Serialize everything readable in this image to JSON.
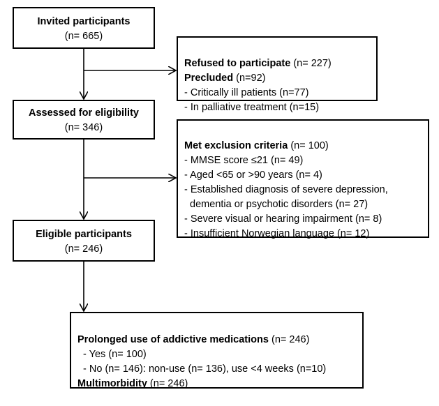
{
  "nodes": [
    {
      "title": "Invited participants",
      "count": "(n= 665)"
    },
    {
      "lines": [
        {
          "label": "Refused to participate",
          "count": "(n= 227)"
        },
        {
          "label": "Precluded",
          "count": "(n=92)"
        },
        {
          "text": "- Critically ill patients (n=77)"
        },
        {
          "text": "- In palliative treatment (n=15)"
        }
      ]
    },
    {
      "title": "Assessed for eligibility",
      "count": "(n= 346)"
    },
    {
      "lines": [
        {
          "label": "Met exclusion criteria",
          "count": "(n= 100)"
        },
        {
          "text": "- MMSE score ≤21 (n= 49)"
        },
        {
          "text": "- Aged <65 or >90 years (n= 4)"
        },
        {
          "text": "- Established diagnosis of severe depression,"
        },
        {
          "text": "  dementia or psychotic disorders (n= 27)"
        },
        {
          "text": "- Severe visual or hearing impairment (n= 8)"
        },
        {
          "text": "- Insufficient Norwegian language (n= 12)"
        }
      ]
    },
    {
      "title": "Eligible participants",
      "count": "(n= 246)"
    },
    {
      "lines": [
        {
          "label": "Prolonged use of addictive medications",
          "count": "(n= 246)"
        },
        {
          "text": "  - Yes (n= 100)"
        },
        {
          "text": "  - No (n= 146): non-use (n= 136), use <4 weeks (n=10)"
        },
        {
          "label": "Multimorbidity",
          "count": "(n= 246)"
        }
      ]
    }
  ]
}
